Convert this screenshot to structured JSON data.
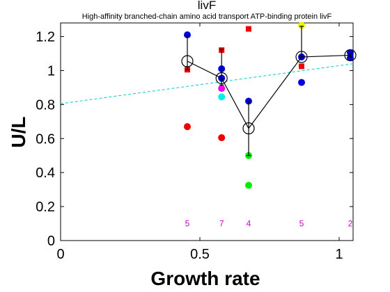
{
  "chart_data": {
    "type": "scatter",
    "title": "livF",
    "subtitle": "High-affinity branched-chain amino acid transport ATP-binding protein livF",
    "xlabel": "Growth rate",
    "ylabel": "U/L",
    "xlim": [
      0,
      1.05
    ],
    "ylim": [
      0,
      1.28
    ],
    "xticks": [
      0,
      0.5,
      1
    ],
    "xtick_labels": [
      "0",
      "0.5",
      "1"
    ],
    "yticks": [
      0,
      0.2,
      0.4,
      0.6,
      0.8,
      1,
      1.2
    ],
    "ytick_labels": [
      "0",
      "0.2",
      "0.4",
      "0.6",
      "0.8",
      "1",
      "1.2"
    ],
    "grid": false,
    "colors": {
      "red": "#ee0000",
      "blue": "#0000dd",
      "magenta": "#ee00ee",
      "cyan": "#00eeee",
      "green": "#00ee00",
      "yellow": "#eeee00",
      "trend": "#00cccc",
      "count": "#cc00cc"
    },
    "mean_series": {
      "x": [
        0.455,
        0.578,
        0.675,
        0.865,
        1.04
      ],
      "y": [
        1.055,
        0.955,
        0.66,
        1.08,
        1.09
      ],
      "err_low": [
        0.05,
        0.04,
        0.16,
        0.0,
        0.01
      ],
      "err_high": [
        0.15,
        0.17,
        0.16,
        0.18,
        0.01
      ]
    },
    "trend_line": {
      "x": [
        0,
        1.05
      ],
      "y": [
        0.805,
        1.04
      ]
    },
    "points": [
      {
        "x": 0.455,
        "y": 1.21,
        "color": "blue",
        "shape": "circle"
      },
      {
        "x": 0.455,
        "y": 1.005,
        "color": "red",
        "shape": "square"
      },
      {
        "x": 0.455,
        "y": 0.67,
        "color": "red",
        "shape": "circle"
      },
      {
        "x": 0.578,
        "y": 1.12,
        "color": "red",
        "shape": "square"
      },
      {
        "x": 0.578,
        "y": 1.01,
        "color": "blue",
        "shape": "circle"
      },
      {
        "x": 0.578,
        "y": 0.955,
        "color": "blue",
        "shape": "circle"
      },
      {
        "x": 0.578,
        "y": 0.895,
        "color": "magenta",
        "shape": "circle"
      },
      {
        "x": 0.578,
        "y": 0.845,
        "color": "cyan",
        "shape": "circle"
      },
      {
        "x": 0.578,
        "y": 0.605,
        "color": "red",
        "shape": "circle"
      },
      {
        "x": 0.675,
        "y": 1.245,
        "color": "red",
        "shape": "square"
      },
      {
        "x": 0.675,
        "y": 0.82,
        "color": "blue",
        "shape": "circle"
      },
      {
        "x": 0.675,
        "y": 0.5,
        "color": "green",
        "shape": "circle"
      },
      {
        "x": 0.675,
        "y": 0.325,
        "color": "green",
        "shape": "circle"
      },
      {
        "x": 0.865,
        "y": 1.265,
        "color": "yellow",
        "shape": "circle"
      },
      {
        "x": 0.865,
        "y": 1.08,
        "color": "blue",
        "shape": "circle"
      },
      {
        "x": 0.865,
        "y": 1.025,
        "color": "red",
        "shape": "square"
      },
      {
        "x": 0.865,
        "y": 0.93,
        "color": "blue",
        "shape": "circle"
      },
      {
        "x": 1.04,
        "y": 1.105,
        "color": "blue",
        "shape": "circle"
      },
      {
        "x": 1.04,
        "y": 1.075,
        "color": "blue",
        "shape": "circle"
      }
    ],
    "counts": [
      {
        "x": 0.455,
        "label": "5"
      },
      {
        "x": 0.578,
        "label": "7"
      },
      {
        "x": 0.675,
        "label": "4"
      },
      {
        "x": 0.865,
        "label": "5"
      },
      {
        "x": 1.04,
        "label": "2"
      }
    ],
    "count_y": 0.1
  }
}
